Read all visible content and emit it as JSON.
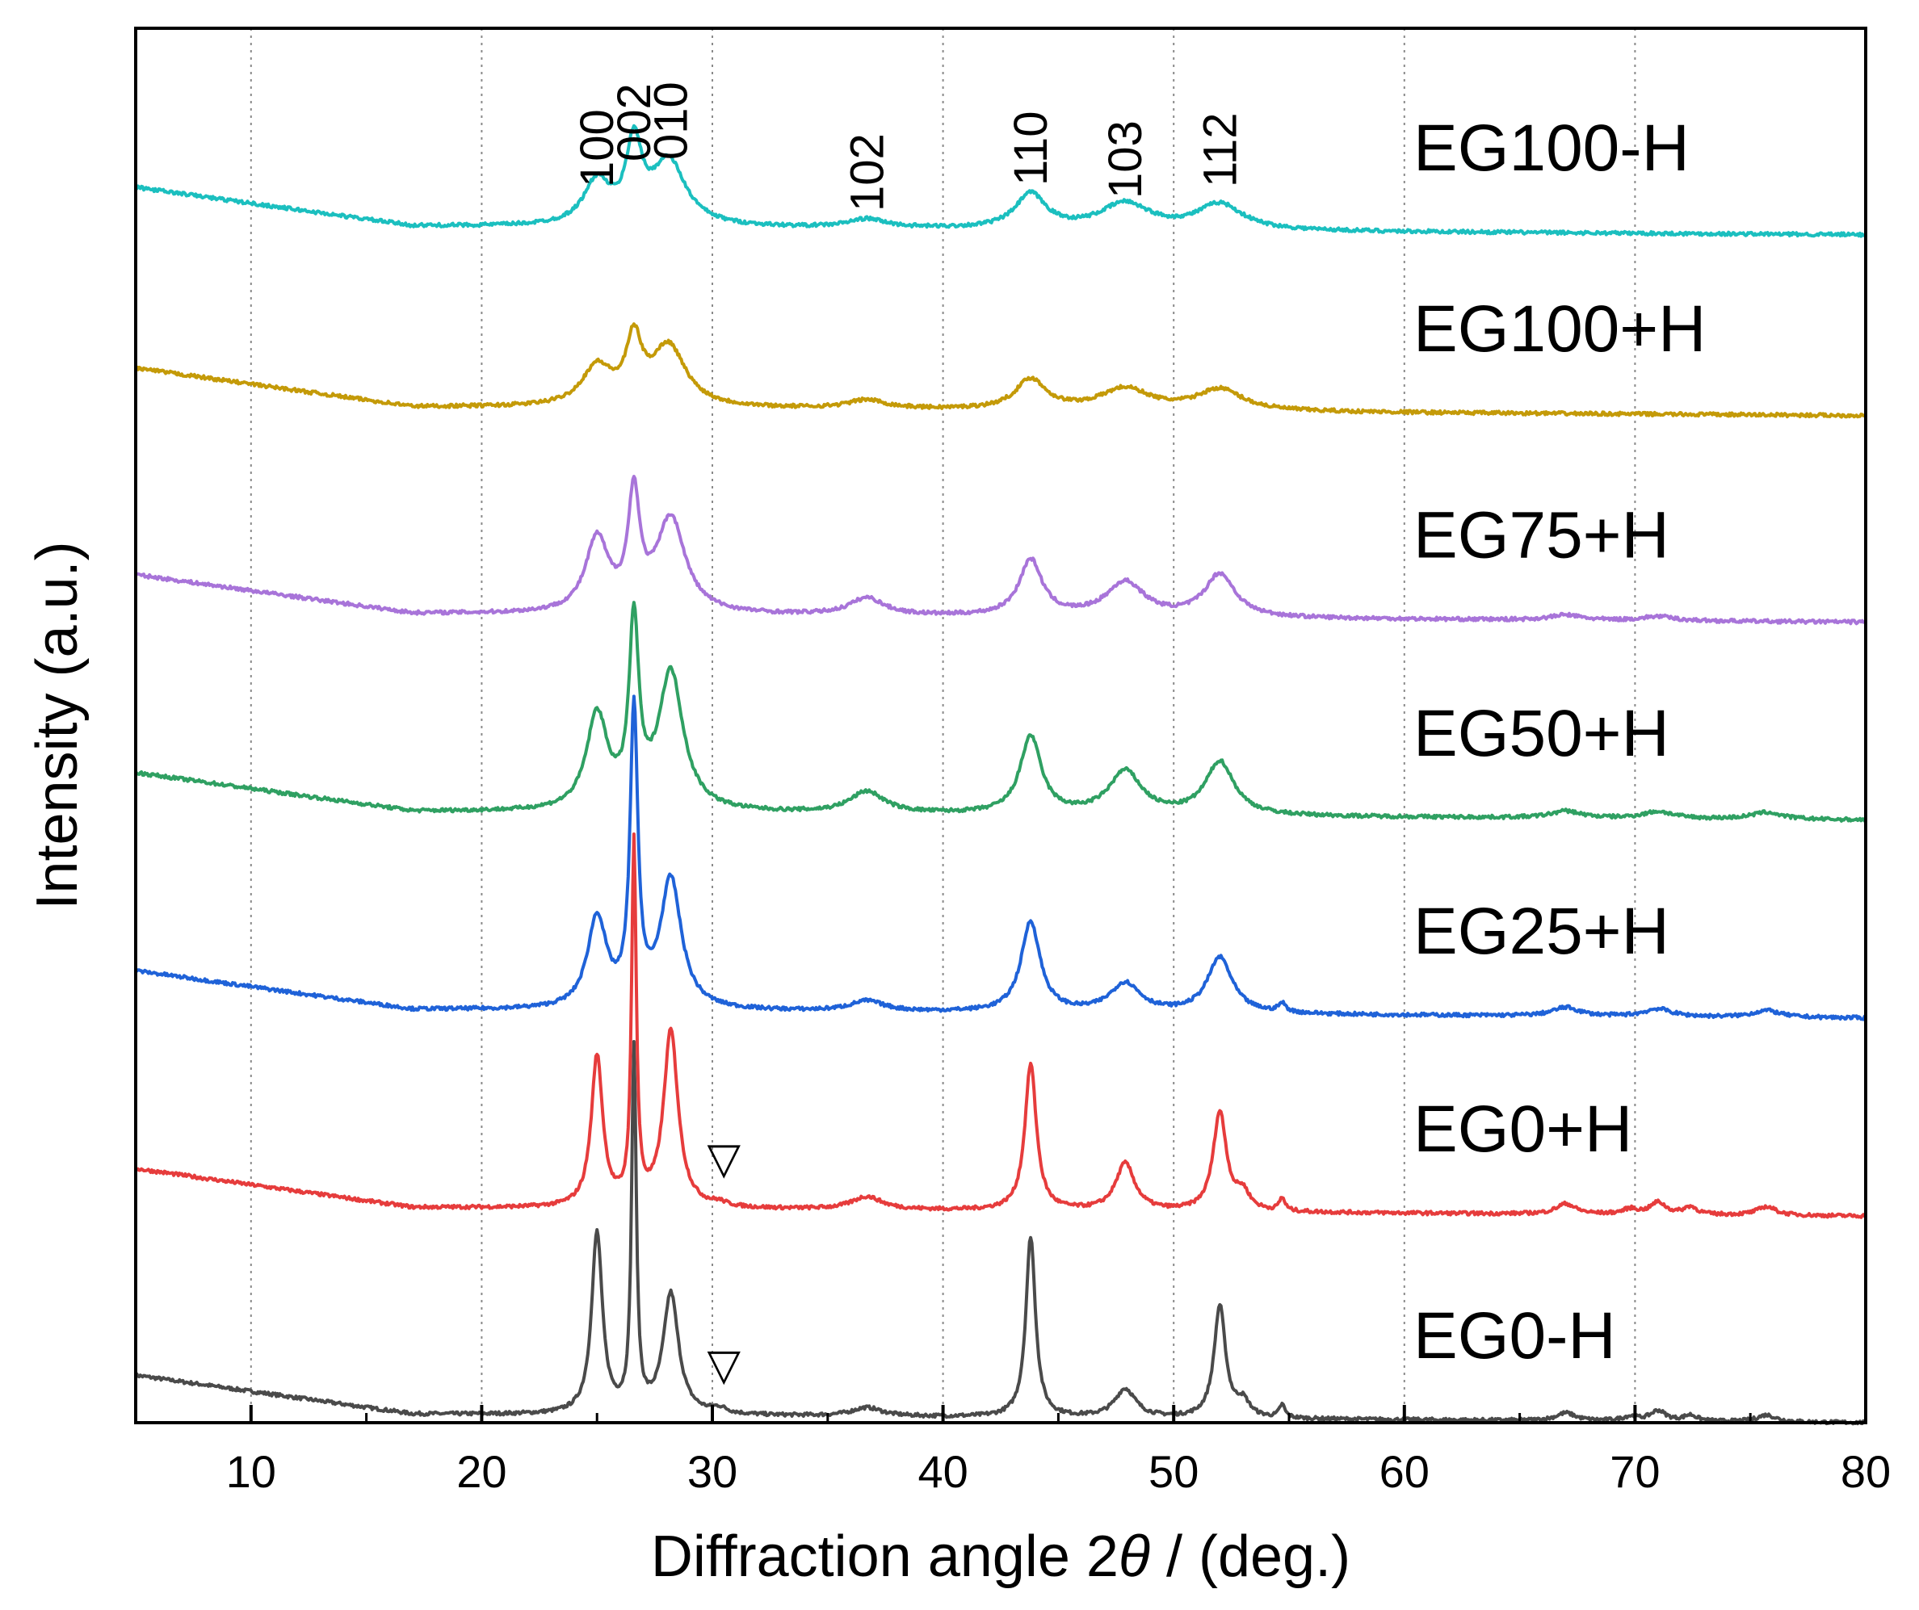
{
  "chart_data": {
    "type": "line",
    "title": "",
    "xlabel": "Diffraction angle 2",
    "xlabel_symbol": "θ",
    "xlabel_unit": " / (deg.)",
    "ylabel": "Intensity (a.u.)",
    "xlim": [
      5,
      80
    ],
    "x_ticks": [
      10,
      20,
      30,
      40,
      50,
      60,
      70,
      80
    ],
    "x_minor_ticks": [
      5,
      15,
      25,
      35,
      45,
      55,
      65,
      75
    ],
    "grid": "vertical dotted at major ticks",
    "ylim": [
      0,
      1.62
    ],
    "y_ticks": "none",
    "legend": "labels at right of each curve",
    "offset_spacing": 0.23,
    "series": [
      {
        "name": "EG100-H",
        "color": "#1bbfbf",
        "offset": 1.38,
        "baseline": {
          "start": 0.055,
          "mid": 0.01,
          "end": 0.0
        },
        "peaks": [
          [
            25.0,
            0.05,
            0.7
          ],
          [
            26.6,
            0.09,
            0.4
          ],
          [
            28.1,
            0.075,
            0.9
          ],
          [
            36.7,
            0.01,
            1.0
          ],
          [
            43.8,
            0.04,
            0.8
          ],
          [
            47.9,
            0.03,
            1.3
          ],
          [
            52.0,
            0.03,
            1.2
          ]
        ]
      },
      {
        "name": "EG100+H",
        "color": "#c49a08",
        "offset": 1.17,
        "baseline": {
          "start": 0.055,
          "mid": 0.01,
          "end": 0.0
        },
        "peaks": [
          [
            25.0,
            0.045,
            0.8
          ],
          [
            26.6,
            0.07,
            0.4
          ],
          [
            28.1,
            0.07,
            0.9
          ],
          [
            36.7,
            0.01,
            1.0
          ],
          [
            43.8,
            0.035,
            0.8
          ],
          [
            47.9,
            0.025,
            1.3
          ],
          [
            52.0,
            0.025,
            1.2
          ]
        ]
      },
      {
        "name": "EG75+H",
        "color": "#a874d9",
        "offset": 0.93,
        "baseline": {
          "start": 0.055,
          "mid": 0.01,
          "end": 0.0
        },
        "peaks": [
          [
            25.0,
            0.085,
            0.6
          ],
          [
            26.6,
            0.13,
            0.3
          ],
          [
            28.2,
            0.11,
            0.75
          ],
          [
            36.7,
            0.02,
            0.9
          ],
          [
            43.8,
            0.065,
            0.6
          ],
          [
            47.9,
            0.04,
            1.0
          ],
          [
            52.0,
            0.05,
            0.8
          ],
          [
            67.0,
            0.006,
            0.8
          ],
          [
            71.0,
            0.005,
            0.8
          ]
        ]
      },
      {
        "name": "EG50+H",
        "color": "#2fa062",
        "offset": 0.7,
        "baseline": {
          "start": 0.055,
          "mid": 0.01,
          "end": 0.0
        },
        "peaks": [
          [
            25.0,
            0.11,
            0.55
          ],
          [
            26.6,
            0.21,
            0.25
          ],
          [
            28.2,
            0.16,
            0.65
          ],
          [
            36.7,
            0.025,
            0.9
          ],
          [
            43.8,
            0.09,
            0.55
          ],
          [
            47.9,
            0.05,
            0.85
          ],
          [
            52.0,
            0.062,
            0.75
          ],
          [
            67.0,
            0.008,
            0.8
          ],
          [
            71.0,
            0.008,
            0.8
          ],
          [
            75.7,
            0.008,
            0.8
          ]
        ]
      },
      {
        "name": "EG25+H",
        "color": "#1f62d8",
        "offset": 0.47,
        "baseline": {
          "start": 0.055,
          "mid": 0.01,
          "end": 0.0
        },
        "peaks": [
          [
            25.0,
            0.105,
            0.5
          ],
          [
            26.6,
            0.34,
            0.2
          ],
          [
            28.2,
            0.15,
            0.55
          ],
          [
            36.7,
            0.012,
            0.9
          ],
          [
            43.8,
            0.105,
            0.5
          ],
          [
            47.9,
            0.034,
            0.8
          ],
          [
            52.0,
            0.065,
            0.65
          ],
          [
            54.7,
            0.01,
            0.2
          ],
          [
            67.0,
            0.01,
            0.7
          ],
          [
            71.0,
            0.009,
            0.7
          ],
          [
            75.7,
            0.008,
            0.7
          ]
        ]
      },
      {
        "name": "EG0+H",
        "color": "#e63c3c",
        "offset": 0.24,
        "baseline": {
          "start": 0.055,
          "mid": 0.01,
          "end": 0.0
        },
        "peaks": [
          [
            25.0,
            0.175,
            0.3
          ],
          [
            26.6,
            0.42,
            0.12
          ],
          [
            28.2,
            0.205,
            0.38
          ],
          [
            30.3,
            0.004,
            0.4
          ],
          [
            36.7,
            0.015,
            0.8
          ],
          [
            43.8,
            0.17,
            0.3
          ],
          [
            47.9,
            0.055,
            0.5
          ],
          [
            52.0,
            0.115,
            0.35
          ],
          [
            53.0,
            0.02,
            0.35
          ],
          [
            54.7,
            0.015,
            0.15
          ],
          [
            67.0,
            0.012,
            0.5
          ],
          [
            69.8,
            0.006,
            0.4
          ],
          [
            71.0,
            0.014,
            0.4
          ],
          [
            72.4,
            0.009,
            0.35
          ],
          [
            75.7,
            0.01,
            0.5
          ]
        ]
      },
      {
        "name": "EG0-H",
        "color": "#4a4a4a",
        "offset": 0.0,
        "baseline": {
          "start": 0.055,
          "mid": 0.01,
          "end": 0.0
        },
        "peaks": [
          [
            25.0,
            0.21,
            0.28
          ],
          [
            26.6,
            0.42,
            0.12
          ],
          [
            28.2,
            0.14,
            0.4
          ],
          [
            30.3,
            0.006,
            0.4
          ],
          [
            36.7,
            0.01,
            0.8
          ],
          [
            43.8,
            0.21,
            0.25
          ],
          [
            47.9,
            0.033,
            0.55
          ],
          [
            52.0,
            0.13,
            0.3
          ],
          [
            53.0,
            0.018,
            0.35
          ],
          [
            54.7,
            0.015,
            0.15
          ],
          [
            67.0,
            0.009,
            0.5
          ],
          [
            69.8,
            0.005,
            0.4
          ],
          [
            71.0,
            0.012,
            0.4
          ],
          [
            72.4,
            0.007,
            0.35
          ],
          [
            75.7,
            0.008,
            0.5
          ]
        ]
      }
    ],
    "hkl_annotations": [
      {
        "label": "100",
        "x": 25.0
      },
      {
        "label": "002",
        "x": 26.6
      },
      {
        "label": "010",
        "x": 28.2
      },
      {
        "label": "102",
        "x": 36.7
      },
      {
        "label": "110",
        "x": 43.8
      },
      {
        "label": "103",
        "x": 47.9
      },
      {
        "label": "112",
        "x": 52.0
      }
    ],
    "markers": [
      {
        "symbol": "▽",
        "x": 30.5,
        "series": "EG0+H"
      },
      {
        "symbol": "▽",
        "x": 30.5,
        "series": "EG0-H"
      }
    ]
  }
}
